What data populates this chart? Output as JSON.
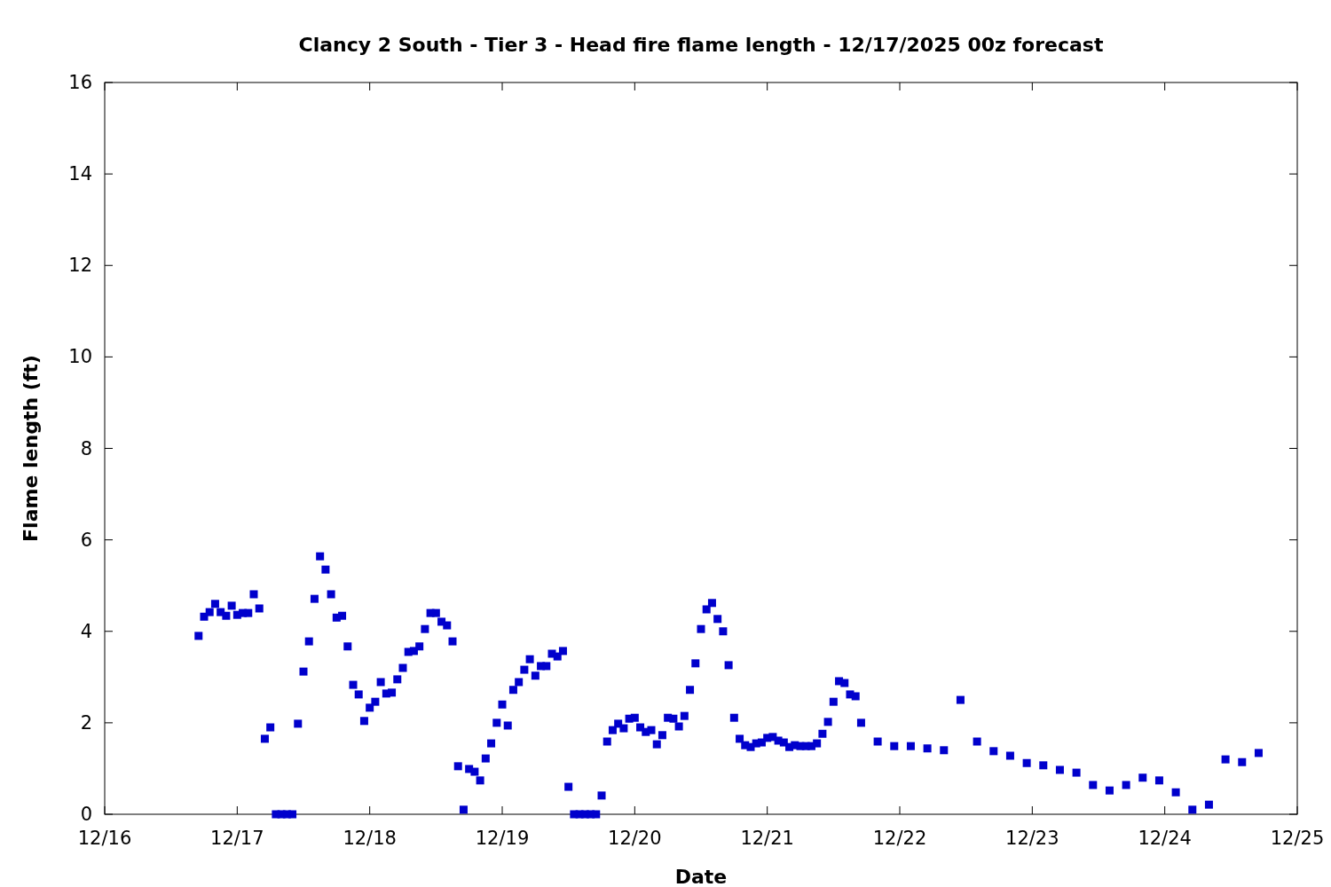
{
  "chart_data": {
    "type": "scatter",
    "title": "Clancy 2 South - Tier 3 - Head fire flame length - 12/17/2025 00z forecast",
    "xlabel": "Date",
    "ylabel": "Flame length (ft)",
    "marker": "square",
    "grid": false,
    "xlim": [
      "2025-12-16",
      "2025-12-25"
    ],
    "xticks": [
      {
        "value": "2025-12-16",
        "label": "12/16"
      },
      {
        "value": "2025-12-17",
        "label": "12/17"
      },
      {
        "value": "2025-12-18",
        "label": "12/18"
      },
      {
        "value": "2025-12-19",
        "label": "12/19"
      },
      {
        "value": "2025-12-20",
        "label": "12/20"
      },
      {
        "value": "2025-12-21",
        "label": "12/21"
      },
      {
        "value": "2025-12-22",
        "label": "12/22"
      },
      {
        "value": "2025-12-23",
        "label": "12/23"
      },
      {
        "value": "2025-12-24",
        "label": "12/24"
      },
      {
        "value": "2025-12-25",
        "label": "12/25"
      }
    ],
    "ylim": [
      0,
      16
    ],
    "yticks": [
      0,
      2,
      4,
      6,
      8,
      10,
      12,
      14,
      16
    ],
    "series": [
      {
        "color": "#0000cc",
        "x": [
          "2025-12-16T17:00",
          "2025-12-16T18:00",
          "2025-12-16T19:00",
          "2025-12-16T20:00",
          "2025-12-16T21:00",
          "2025-12-16T22:00",
          "2025-12-16T23:00",
          "2025-12-17T00:00",
          "2025-12-17T01:00",
          "2025-12-17T02:00",
          "2025-12-17T03:00",
          "2025-12-17T04:00",
          "2025-12-17T05:00",
          "2025-12-17T06:00",
          "2025-12-17T07:00",
          "2025-12-17T08:00",
          "2025-12-17T09:00",
          "2025-12-17T10:00",
          "2025-12-17T11:00",
          "2025-12-17T12:00",
          "2025-12-17T13:00",
          "2025-12-17T14:00",
          "2025-12-17T15:00",
          "2025-12-17T16:00",
          "2025-12-17T17:00",
          "2025-12-17T18:00",
          "2025-12-17T19:00",
          "2025-12-17T20:00",
          "2025-12-17T21:00",
          "2025-12-17T22:00",
          "2025-12-17T23:00",
          "2025-12-18T00:00",
          "2025-12-18T01:00",
          "2025-12-18T02:00",
          "2025-12-18T03:00",
          "2025-12-18T04:00",
          "2025-12-18T05:00",
          "2025-12-18T06:00",
          "2025-12-18T07:00",
          "2025-12-18T08:00",
          "2025-12-18T09:00",
          "2025-12-18T10:00",
          "2025-12-18T11:00",
          "2025-12-18T12:00",
          "2025-12-18T13:00",
          "2025-12-18T14:00",
          "2025-12-18T15:00",
          "2025-12-18T16:00",
          "2025-12-18T17:00",
          "2025-12-18T18:00",
          "2025-12-18T19:00",
          "2025-12-18T20:00",
          "2025-12-18T21:00",
          "2025-12-18T22:00",
          "2025-12-18T23:00",
          "2025-12-19T00:00",
          "2025-12-19T01:00",
          "2025-12-19T02:00",
          "2025-12-19T03:00",
          "2025-12-19T04:00",
          "2025-12-19T05:00",
          "2025-12-19T06:00",
          "2025-12-19T07:00",
          "2025-12-19T08:00",
          "2025-12-19T09:00",
          "2025-12-19T10:00",
          "2025-12-19T11:00",
          "2025-12-19T12:00",
          "2025-12-19T13:00",
          "2025-12-19T14:00",
          "2025-12-19T15:00",
          "2025-12-19T16:00",
          "2025-12-19T17:00",
          "2025-12-19T18:00",
          "2025-12-19T19:00",
          "2025-12-19T20:00",
          "2025-12-19T21:00",
          "2025-12-19T22:00",
          "2025-12-19T23:00",
          "2025-12-20T00:00",
          "2025-12-20T01:00",
          "2025-12-20T02:00",
          "2025-12-20T03:00",
          "2025-12-20T04:00",
          "2025-12-20T05:00",
          "2025-12-20T06:00",
          "2025-12-20T07:00",
          "2025-12-20T08:00",
          "2025-12-20T09:00",
          "2025-12-20T10:00",
          "2025-12-20T11:00",
          "2025-12-20T12:00",
          "2025-12-20T13:00",
          "2025-12-20T14:00",
          "2025-12-20T15:00",
          "2025-12-20T16:00",
          "2025-12-20T17:00",
          "2025-12-20T18:00",
          "2025-12-20T19:00",
          "2025-12-20T20:00",
          "2025-12-20T21:00",
          "2025-12-20T22:00",
          "2025-12-20T23:00",
          "2025-12-21T00:00",
          "2025-12-21T01:00",
          "2025-12-21T02:00",
          "2025-12-21T03:00",
          "2025-12-21T04:00",
          "2025-12-21T05:00",
          "2025-12-21T06:00",
          "2025-12-21T07:00",
          "2025-12-21T08:00",
          "2025-12-21T09:00",
          "2025-12-21T10:00",
          "2025-12-21T11:00",
          "2025-12-21T12:00",
          "2025-12-21T13:00",
          "2025-12-21T14:00",
          "2025-12-21T15:00",
          "2025-12-21T16:00",
          "2025-12-21T17:00",
          "2025-12-21T20:00",
          "2025-12-21T23:00",
          "2025-12-22T02:00",
          "2025-12-22T05:00",
          "2025-12-22T08:00",
          "2025-12-22T11:00",
          "2025-12-22T14:00",
          "2025-12-22T17:00",
          "2025-12-22T20:00",
          "2025-12-22T23:00",
          "2025-12-23T02:00",
          "2025-12-23T05:00",
          "2025-12-23T08:00",
          "2025-12-23T11:00",
          "2025-12-23T14:00",
          "2025-12-23T17:00",
          "2025-12-23T20:00",
          "2025-12-23T23:00",
          "2025-12-24T02:00",
          "2025-12-24T05:00",
          "2025-12-24T08:00",
          "2025-12-24T11:00",
          "2025-12-24T14:00",
          "2025-12-24T17:00"
        ],
        "values": [
          3.9,
          4.32,
          4.42,
          4.6,
          4.42,
          4.34,
          4.56,
          4.36,
          4.4,
          4.4,
          4.81,
          4.5,
          1.65,
          1.9,
          0,
          0,
          0,
          0,
          1.98,
          3.12,
          3.78,
          4.71,
          5.64,
          5.35,
          4.81,
          4.3,
          4.34,
          3.67,
          2.83,
          2.62,
          2.04,
          2.33,
          2.46,
          2.89,
          2.64,
          2.66,
          2.95,
          3.2,
          3.55,
          3.57,
          3.67,
          4.05,
          4.4,
          4.4,
          4.21,
          4.13,
          3.78,
          1.05,
          0.1,
          0.99,
          0.93,
          0.74,
          1.22,
          1.55,
          2.0,
          2.4,
          1.94,
          2.72,
          2.89,
          3.16,
          3.39,
          3.03,
          3.24,
          3.24,
          3.51,
          3.45,
          3.57,
          0.6,
          0,
          0,
          0,
          0,
          0,
          0.41,
          1.59,
          1.84,
          1.98,
          1.88,
          2.09,
          2.11,
          1.9,
          1.8,
          1.84,
          1.53,
          1.73,
          2.11,
          2.09,
          1.92,
          2.15,
          2.72,
          3.3,
          4.05,
          4.48,
          4.62,
          4.27,
          4.0,
          3.26,
          2.11,
          1.65,
          1.51,
          1.47,
          1.55,
          1.57,
          1.67,
          1.69,
          1.61,
          1.57,
          1.47,
          1.51,
          1.49,
          1.49,
          1.49,
          1.55,
          1.76,
          2.02,
          2.46,
          2.91,
          2.87,
          2.62,
          2.58,
          2.0,
          1.59,
          1.49,
          1.49,
          1.44,
          1.4,
          2.5,
          1.59,
          1.38,
          1.28,
          1.12,
          1.07,
          0.97,
          0.91,
          0.64,
          0.52,
          0.64,
          0.8,
          0.74,
          0.48,
          0.1,
          0.21,
          1.2,
          1.14,
          1.34
        ]
      }
    ]
  }
}
